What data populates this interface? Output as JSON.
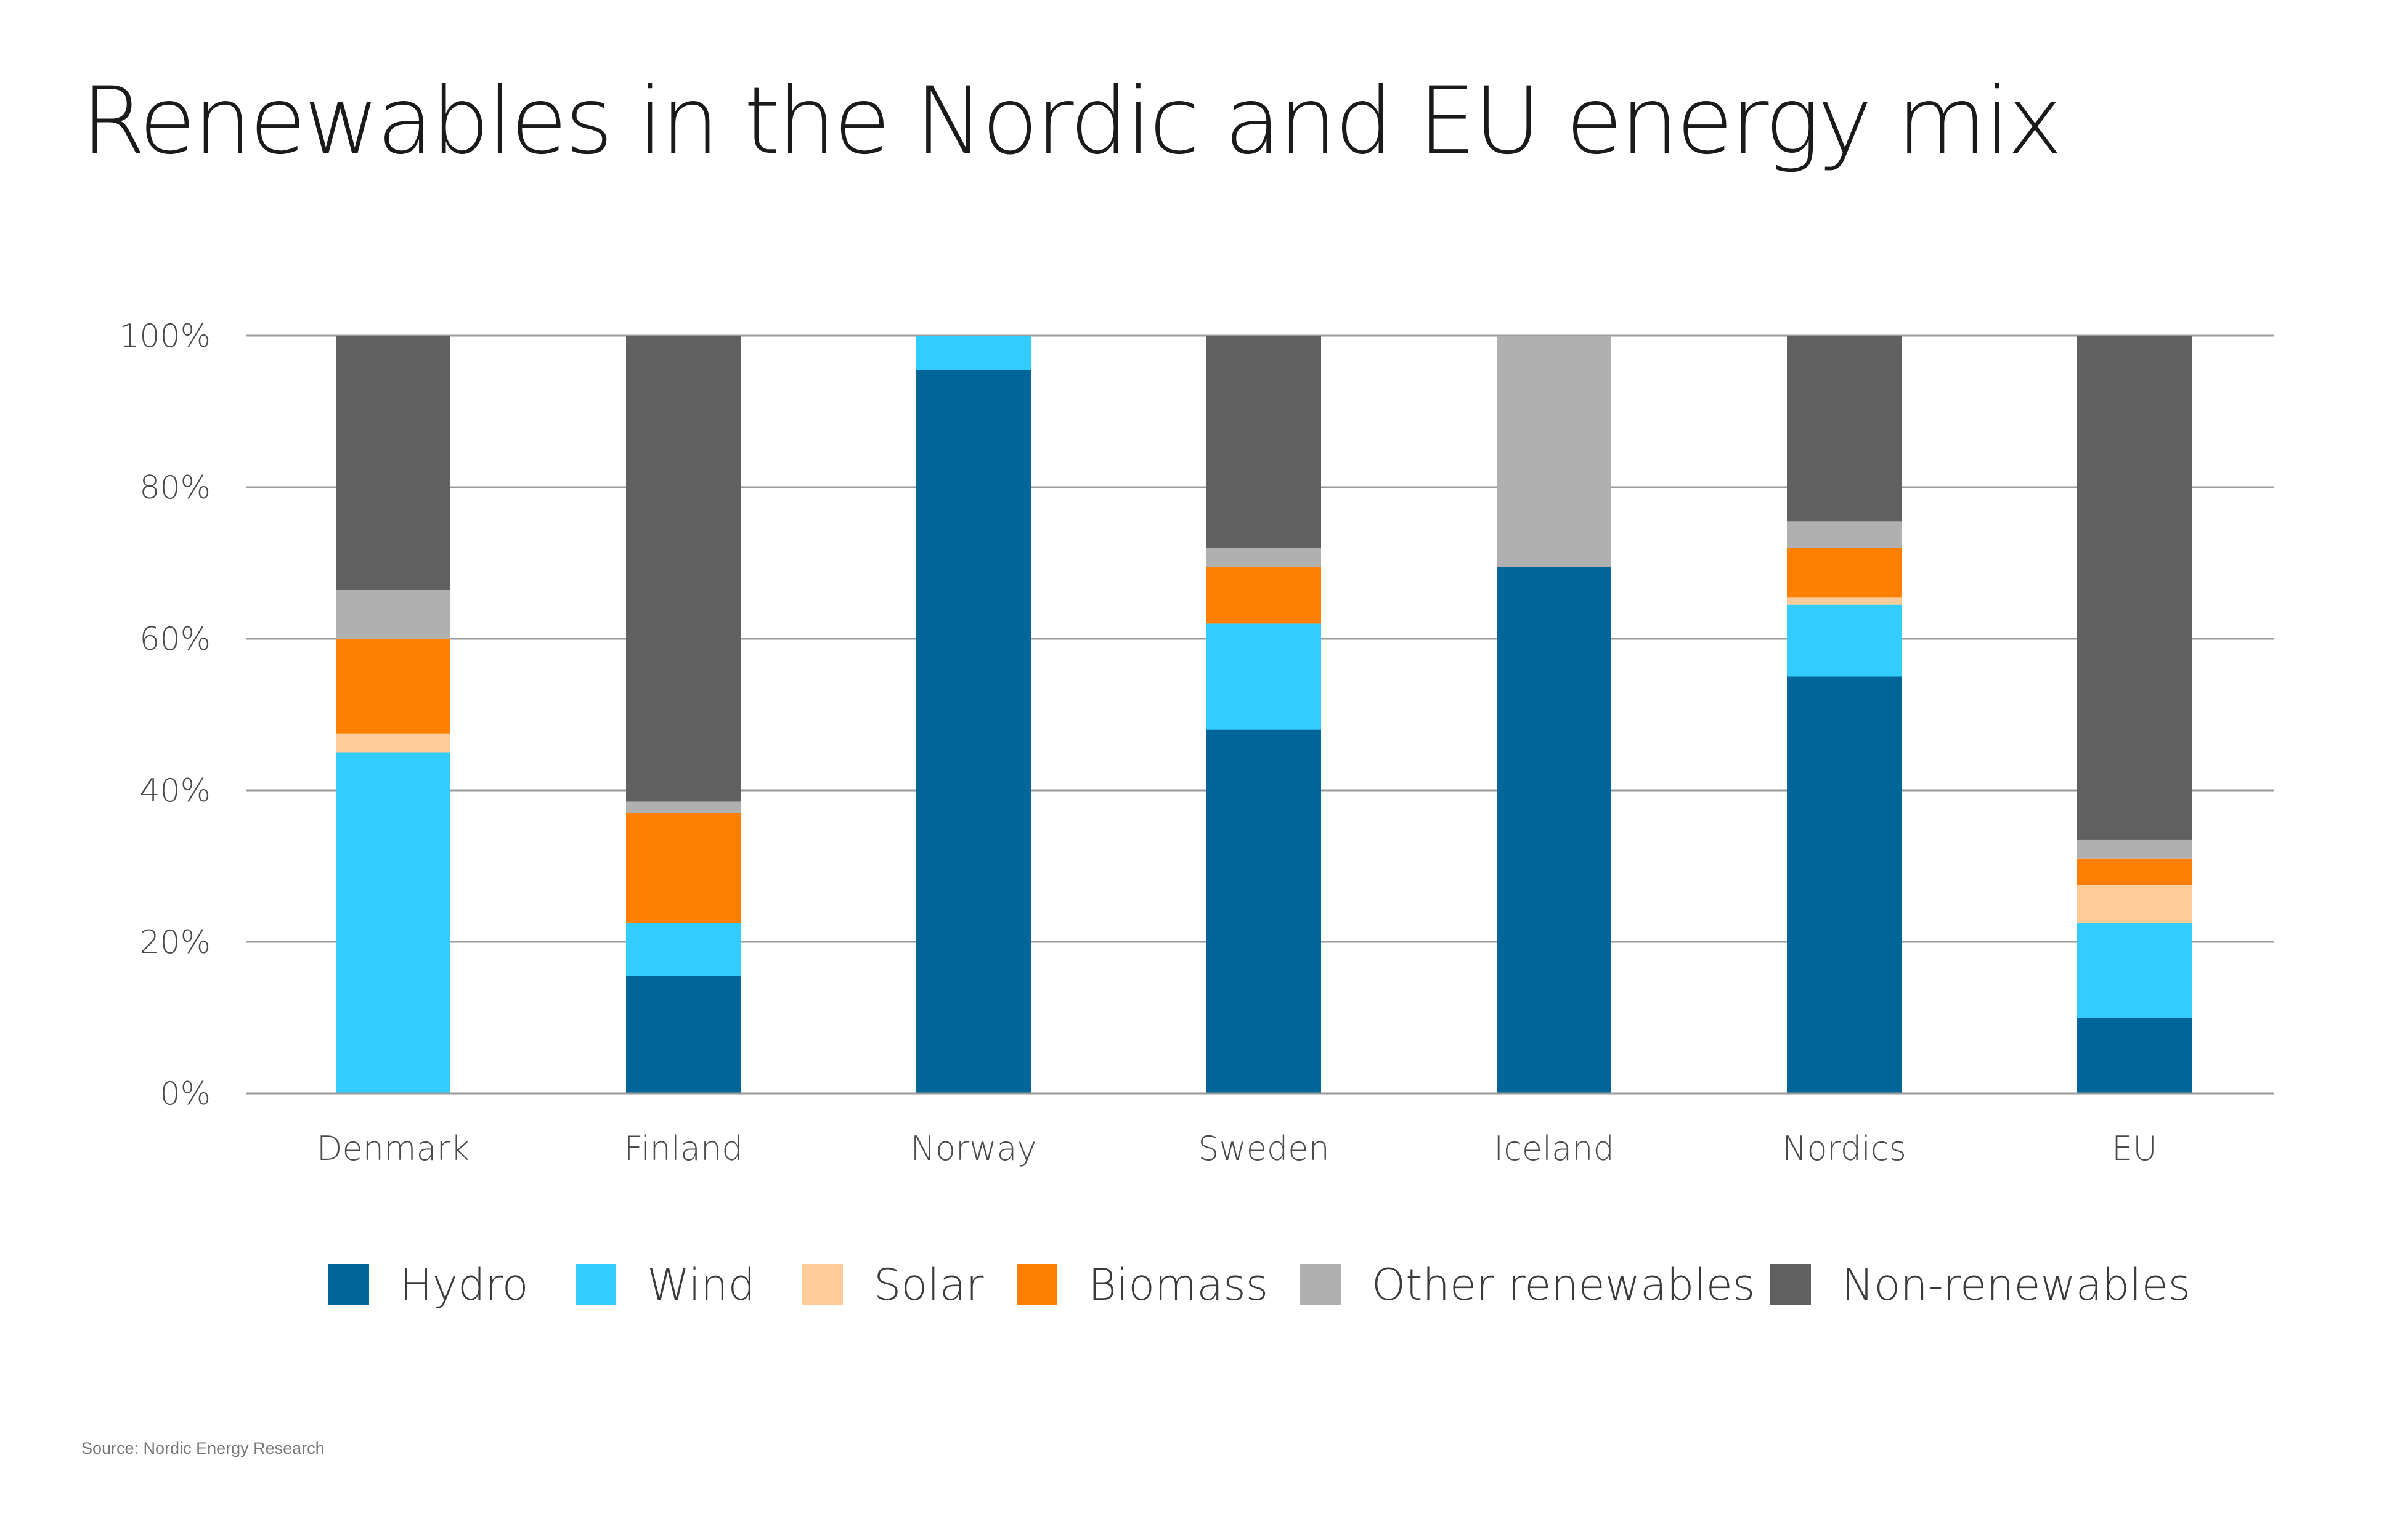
{
  "chart_data": {
    "type": "bar",
    "stacked": true,
    "title": "Renewables in the Nordic and EU energy mix",
    "xlabel": "",
    "ylabel": "",
    "ylim": [
      0,
      100
    ],
    "y_ticks": [
      0,
      20,
      40,
      60,
      80,
      100
    ],
    "y_tick_labels": [
      "0%",
      "20%",
      "40%",
      "60%",
      "80%",
      "100%"
    ],
    "grid": true,
    "legend_position": "bottom",
    "categories": [
      "Denmark",
      "Finland",
      "Norway",
      "Sweden",
      "Iceland",
      "Nordics",
      "EU"
    ],
    "series": [
      {
        "name": "Hydro",
        "color": "#006699",
        "values": [
          0,
          15.5,
          95.5,
          48,
          69.5,
          55,
          10
        ]
      },
      {
        "name": "Wind",
        "color": "#33ccff",
        "values": [
          45,
          7,
          4.5,
          14,
          0,
          9.5,
          12.5
        ]
      },
      {
        "name": "Solar",
        "color": "#ffcc99",
        "values": [
          2.5,
          0,
          0,
          0,
          0,
          1,
          5
        ]
      },
      {
        "name": "Biomass",
        "color": "#ff8000",
        "values": [
          12.5,
          14.5,
          0,
          7.5,
          0,
          6.5,
          3.5
        ]
      },
      {
        "name": "Other renewables",
        "color": "#b0b0b0",
        "values": [
          6.5,
          1.5,
          0,
          2.5,
          30.5,
          3.5,
          2.5
        ]
      },
      {
        "name": "Non-renewables",
        "color": "#606060",
        "values": [
          33.5,
          61.5,
          0,
          28,
          0,
          24.5,
          66.5
        ]
      }
    ],
    "source": "Source: Nordic Energy Research"
  }
}
